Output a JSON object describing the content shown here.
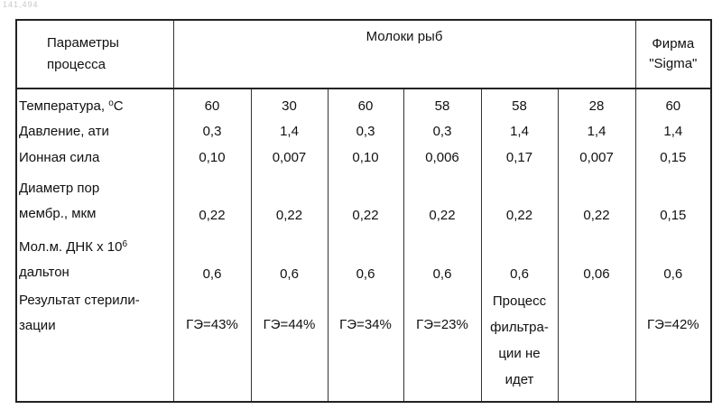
{
  "page_id": "141,494",
  "header": {
    "param_line1": "Параметры",
    "param_line2": "процесса",
    "group": "Молоки рыб",
    "sigma_line1": "Фирма",
    "sigma_line2": "\"Sigma\""
  },
  "rows": [
    {
      "label": "Температура, ",
      "degree": "o",
      "unit": "C",
      "values": [
        "60",
        "30",
        "60",
        "58",
        "58",
        "28",
        "60"
      ]
    },
    {
      "label": "Давление, ати",
      "values": [
        "0,3",
        "1,4",
        "0,3",
        "0,3",
        "1,4",
        "1,4",
        "1,4"
      ]
    },
    {
      "label": "Ионная сила",
      "values": [
        "0,10",
        "0,007",
        "0,10",
        "0,006",
        "0,17",
        "0,007",
        "0,15"
      ]
    },
    {
      "label_line1": "Диаметр пор",
      "label_line2": "мембр., мкм",
      "values": [
        "0,22",
        "0,22",
        "0,22",
        "0,22",
        "0,22",
        "0,22",
        "0,15"
      ]
    },
    {
      "label_line1": "Мол.м. ДНК x 10",
      "exponent": "6",
      "label_line2": "дальтон",
      "values": [
        "0,6",
        "0,6",
        "0,6",
        "0,6",
        "0,6",
        "0,06",
        "0,6"
      ]
    },
    {
      "label_line1": "Результат стерили-",
      "label_line2": "зации",
      "values": [
        "ГЭ=43%",
        "ГЭ=44%",
        "ГЭ=34%",
        "ГЭ=23%",
        "",
        "",
        "ГЭ=42%"
      ],
      "note_lines": [
        "Процесс",
        "фильтра-",
        "ции не",
        "идет"
      ]
    }
  ]
}
